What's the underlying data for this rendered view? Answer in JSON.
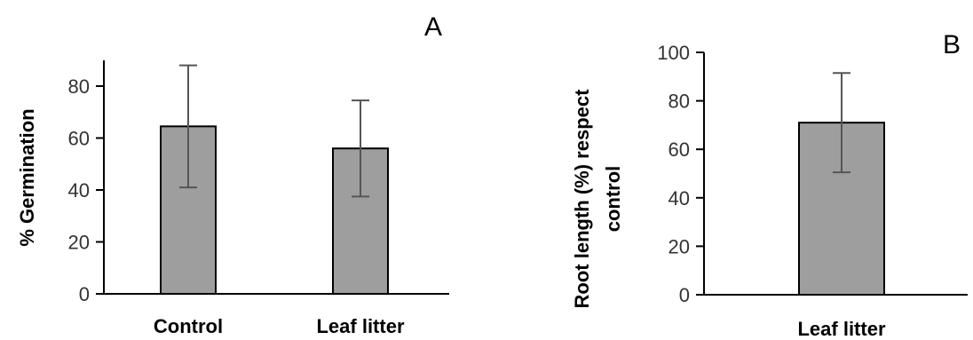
{
  "chart_data": [
    {
      "type": "bar",
      "panel_label": "A",
      "categories": [
        "Control",
        "Leaf litter"
      ],
      "values": [
        64.5,
        56
      ],
      "error": [
        23.5,
        18.5
      ],
      "ylabel": "% Germination",
      "xlabel": "",
      "ylim": [
        0,
        90
      ],
      "yticks": [
        0,
        20,
        40,
        60,
        80
      ],
      "grid": false,
      "bar_color": "#9e9e9e"
    },
    {
      "type": "bar",
      "panel_label": "B",
      "categories": [
        "Leaf litter"
      ],
      "values": [
        71
      ],
      "error": [
        20.5
      ],
      "ylabel_line1": "Root length (%)  respect",
      "ylabel_line2": "control",
      "xlabel": "",
      "ylim": [
        0,
        100
      ],
      "yticks": [
        0,
        20,
        40,
        60,
        80,
        100
      ],
      "grid": false,
      "bar_color": "#9e9e9e"
    }
  ]
}
